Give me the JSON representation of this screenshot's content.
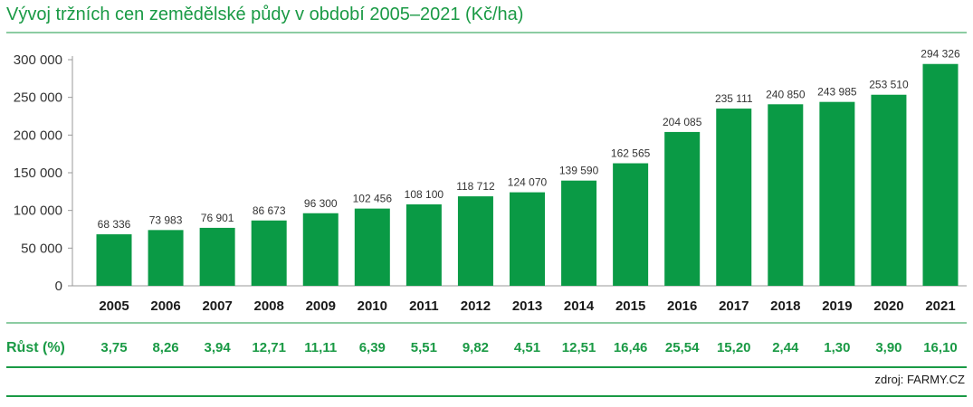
{
  "chart_data": {
    "type": "bar",
    "title": "Vývoj tržních cen zemědělské půdy v období 2005–2021 (Kč/ha)",
    "categories": [
      "2005",
      "2006",
      "2007",
      "2008",
      "2009",
      "2010",
      "2011",
      "2012",
      "2013",
      "2014",
      "2015",
      "2016",
      "2017",
      "2018",
      "2019",
      "2020",
      "2021"
    ],
    "values": [
      68336,
      73983,
      76901,
      86673,
      96300,
      102456,
      108100,
      118712,
      124070,
      139590,
      162565,
      204085,
      235111,
      240850,
      243985,
      253510,
      294326
    ],
    "value_labels": [
      "68 336",
      "73 983",
      "76 901",
      "86 673",
      "96 300",
      "102 456",
      "108 100",
      "118 712",
      "124 070",
      "139 590",
      "162 565",
      "204 085",
      "235 111",
      "240 850",
      "243 985",
      "253 510",
      "294 326"
    ],
    "ylim": [
      0,
      300000
    ],
    "yticks": [
      0,
      50000,
      100000,
      150000,
      200000,
      250000,
      300000
    ],
    "ytick_labels": [
      "0",
      "50 000",
      "100 000",
      "150 000",
      "200 000",
      "250 000",
      "300 000"
    ],
    "grid": false,
    "bar_color": "#0a9a45"
  },
  "growth_row": {
    "label": "Růst (%)",
    "values": [
      "3,75",
      "8,26",
      "3,94",
      "12,71",
      "11,11",
      "6,39",
      "5,51",
      "9,82",
      "4,51",
      "12,51",
      "16,46",
      "25,54",
      "15,20",
      "2,44",
      "1,30",
      "3,90",
      "16,10"
    ]
  },
  "source": "zdroj: FARMY.CZ",
  "colors": {
    "accent": "#1a9a45",
    "bars": "#0a9a45"
  }
}
